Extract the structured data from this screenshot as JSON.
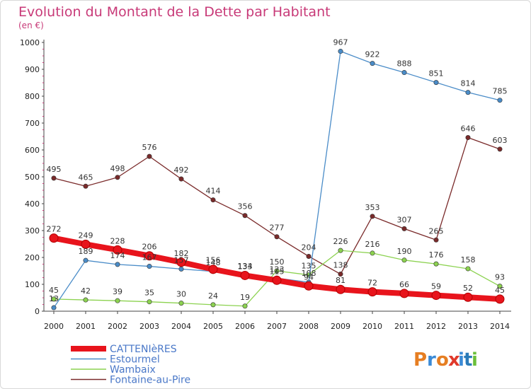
{
  "chart_data": {
    "type": "line",
    "title": "Evolution du Montant de la Dette par Habitant",
    "subtitle": "(en €)",
    "x": [
      "2000",
      "2001",
      "2002",
      "2003",
      "2004",
      "2005",
      "2006",
      "2007",
      "2008",
      "2009",
      "2010",
      "2011",
      "2012",
      "2013",
      "2014"
    ],
    "ylim": [
      0,
      1000
    ],
    "yticks": [
      0,
      100,
      200,
      300,
      400,
      500,
      600,
      700,
      800,
      900,
      1000
    ],
    "grid": false,
    "legend": "bottom-left",
    "series": [
      {
        "name": "CATTENIèRES",
        "color": "#e8141c",
        "values": [
          272,
          249,
          228,
          206,
          182,
          156,
          133,
          115,
          94,
          81,
          72,
          66,
          59,
          52,
          45
        ],
        "labels": [
          "272",
          "249",
          "228",
          "206",
          "182",
          "156",
          "133",
          "115",
          "94",
          "81",
          "72",
          "66",
          "59",
          "52",
          "45"
        ]
      },
      {
        "name": "Estourmel",
        "color": "#4a8cc8",
        "values": [
          13,
          189,
          174,
          167,
          157,
          148,
          134,
          123,
          108,
          967,
          922,
          888,
          851,
          814,
          785
        ],
        "labels": [
          "13",
          "189",
          "174",
          "167",
          "157",
          "148",
          "134",
          "123",
          "108",
          "967",
          "922",
          "888",
          "851",
          "814",
          "785"
        ]
      },
      {
        "name": "Wambaix",
        "color": "#8cd250",
        "values": [
          45,
          42,
          39,
          35,
          30,
          24,
          19,
          150,
          135,
          226,
          216,
          190,
          176,
          158,
          93
        ],
        "labels": [
          "45",
          "42",
          "39",
          "35",
          "30",
          "24",
          "19",
          "150",
          "135",
          "226",
          "216",
          "190",
          "176",
          "158",
          "93"
        ]
      },
      {
        "name": "Fontaine-au-Pire",
        "color": "#7a2a2a",
        "values": [
          495,
          465,
          498,
          576,
          492,
          414,
          356,
          277,
          204,
          138,
          353,
          307,
          265,
          646,
          603
        ],
        "labels": [
          "495",
          "465",
          "498",
          "576",
          "492",
          "414",
          "356",
          "277",
          "204",
          "138",
          "353",
          "307",
          "265",
          "646",
          "603"
        ]
      }
    ]
  },
  "logo": {
    "text": "Proxiti"
  }
}
